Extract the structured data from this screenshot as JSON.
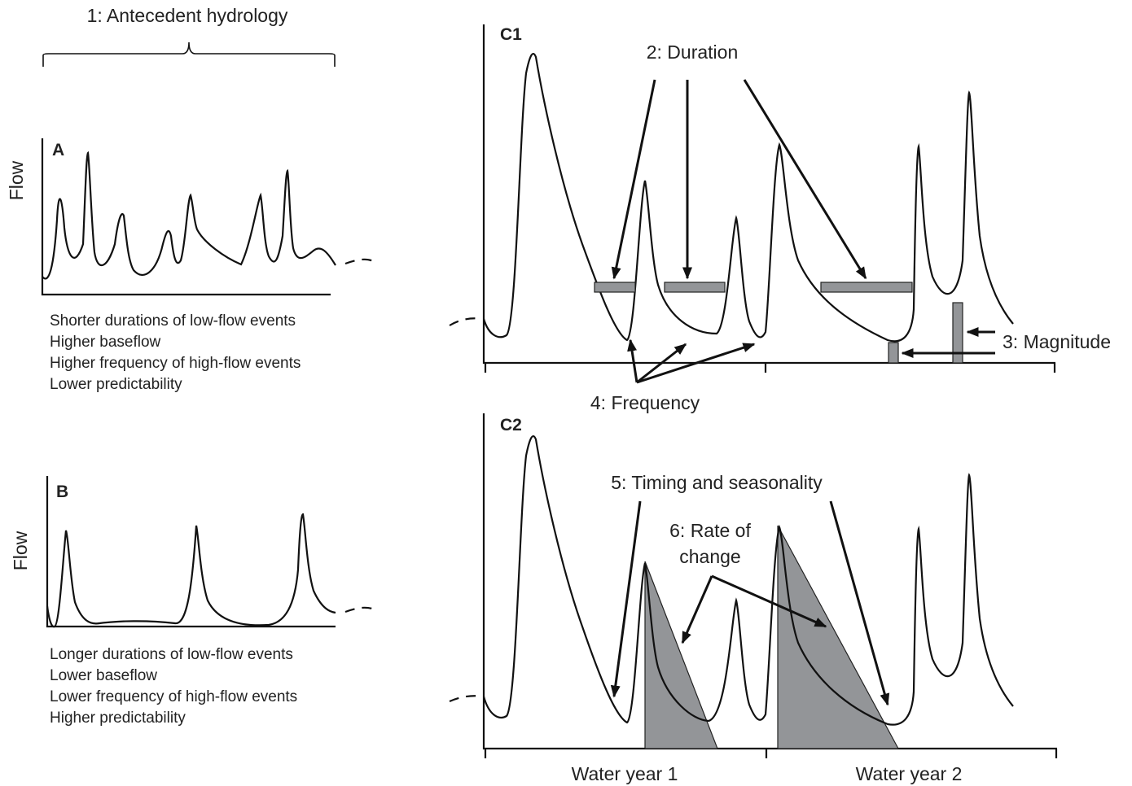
{
  "labels": {
    "antecedent": "1: Antecedent hydrology",
    "duration": "2: Duration",
    "magnitude": "3: Magnitude",
    "frequency": "4: Frequency",
    "timing": "5: Timing and seasonality",
    "rate_line1": "6: Rate of",
    "rate_line2": "change",
    "water_year_1": "Water year 1",
    "water_year_2": "Water year 2"
  },
  "panels": {
    "a": "A",
    "b": "B",
    "c1": "C1",
    "c2": "C2"
  },
  "axes": {
    "flow_a": "Flow",
    "flow_b": "Flow"
  },
  "descriptions": {
    "a": [
      "Shorter durations of low-flow events",
      "Higher baseflow",
      "Higher frequency of high-flow events",
      "Lower predictability"
    ],
    "b": [
      "Longer durations of low-flow events",
      "Lower baseflow",
      "Lower frequency of high-flow events",
      "Higher predictability"
    ]
  },
  "colors": {
    "line": "#111111",
    "fill_gray": "#939598",
    "text": "#222222"
  }
}
